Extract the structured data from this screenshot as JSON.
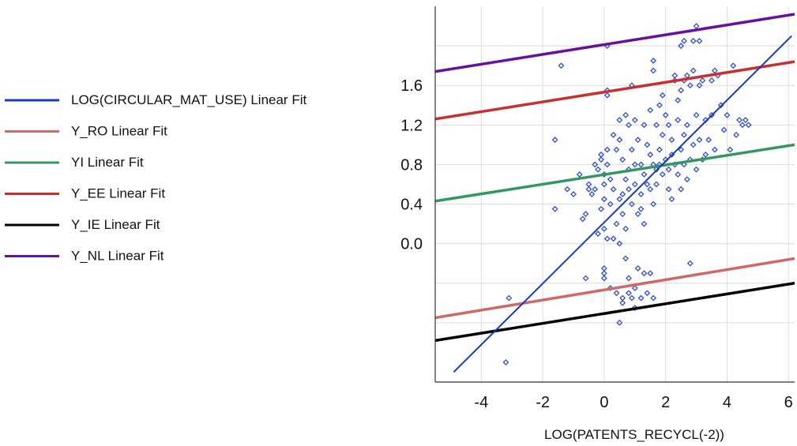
{
  "chart_data": {
    "type": "scatter",
    "title": "",
    "xlabel": "LOG(PATENTS_RECYCL(-2))",
    "ylabel": "",
    "xlim": [
      -5.5,
      6.2
    ],
    "ylim": [
      -1.4,
      2.4
    ],
    "x_ticks": [
      -4,
      -2,
      0,
      2,
      4,
      6
    ],
    "x_tick_labels": [
      "-4",
      "-2",
      "0",
      "2",
      "4",
      "6"
    ],
    "y_ticks": [
      0.0,
      0.4,
      0.8,
      1.2,
      1.6
    ],
    "y_tick_labels": [
      "0.0",
      "0.4",
      "0.8",
      "1.2",
      "1.6"
    ],
    "y_gridlines": [
      -0.8,
      -0.4,
      0.0,
      0.4,
      0.8,
      1.2,
      1.6,
      2.0
    ],
    "grid": true,
    "legend_position": "left",
    "series": [
      {
        "name": "LOG(CIRCULAR_MAT_USE)",
        "kind": "points",
        "marker": "diamond-open",
        "color": "#3050c8",
        "points": [
          [
            -3.2,
            -1.2
          ],
          [
            -3.1,
            -0.55
          ],
          [
            -1.6,
            0.35
          ],
          [
            -1.6,
            1.05
          ],
          [
            -1.4,
            1.8
          ],
          [
            -1.2,
            0.55
          ],
          [
            -1.0,
            0.5
          ],
          [
            -0.8,
            0.7
          ],
          [
            -0.7,
            0.25
          ],
          [
            -0.6,
            0.3
          ],
          [
            -0.5,
            0.6
          ],
          [
            -0.6,
            -0.35
          ],
          [
            -0.4,
            0.5
          ],
          [
            -0.3,
            0.8
          ],
          [
            -0.3,
            0.55
          ],
          [
            -0.2,
            0.75
          ],
          [
            -0.2,
            0.1
          ],
          [
            -0.1,
            0.35
          ],
          [
            -0.1,
            0.85
          ],
          [
            -0.1,
            0.9
          ],
          [
            0.0,
            0.15
          ],
          [
            0.0,
            0.45
          ],
          [
            0.0,
            0.6
          ],
          [
            0.0,
            0.7
          ],
          [
            0.0,
            -0.3
          ],
          [
            0.0,
            -0.25
          ],
          [
            0.0,
            -0.35
          ],
          [
            0.1,
            0.8
          ],
          [
            0.1,
            0.95
          ],
          [
            0.1,
            1.55
          ],
          [
            0.1,
            1.5
          ],
          [
            0.1,
            2.0
          ],
          [
            0.1,
            0.05
          ],
          [
            0.2,
            0.4
          ],
          [
            0.2,
            0.65
          ],
          [
            0.2,
            -0.45
          ],
          [
            0.3,
            0.55
          ],
          [
            0.3,
            1.1
          ],
          [
            0.4,
            0.95
          ],
          [
            0.4,
            0.2
          ],
          [
            0.4,
            -0.5
          ],
          [
            0.5,
            0.45
          ],
          [
            0.5,
            1.05
          ],
          [
            0.5,
            1.25
          ],
          [
            0.5,
            0.0
          ],
          [
            0.5,
            -0.8
          ],
          [
            0.6,
            0.3
          ],
          [
            0.6,
            0.5
          ],
          [
            0.6,
            0.85
          ],
          [
            0.6,
            -0.55
          ],
          [
            0.6,
            -0.6
          ],
          [
            0.7,
            1.3
          ],
          [
            0.7,
            0.65
          ],
          [
            0.7,
            0.15
          ],
          [
            0.7,
            -0.15
          ],
          [
            0.8,
            1.2
          ],
          [
            0.8,
            0.75
          ],
          [
            0.8,
            0.55
          ],
          [
            0.8,
            -0.35
          ],
          [
            0.8,
            -0.5
          ],
          [
            0.9,
            0.4
          ],
          [
            0.9,
            0.95
          ],
          [
            0.9,
            1.6
          ],
          [
            0.9,
            -0.55
          ],
          [
            1.0,
            1.25
          ],
          [
            1.0,
            0.8
          ],
          [
            1.0,
            0.6
          ],
          [
            1.0,
            -0.45
          ],
          [
            1.0,
            -0.65
          ],
          [
            1.1,
            1.05
          ],
          [
            1.1,
            0.3
          ],
          [
            1.1,
            -0.25
          ],
          [
            1.2,
            0.8
          ],
          [
            1.2,
            0.5
          ],
          [
            1.2,
            -0.55
          ],
          [
            1.3,
            1.2
          ],
          [
            1.3,
            0.7
          ],
          [
            1.3,
            0.2
          ],
          [
            1.3,
            -0.3
          ],
          [
            1.4,
            1.0
          ],
          [
            1.4,
            0.6
          ],
          [
            1.4,
            -0.5
          ],
          [
            1.5,
            1.35
          ],
          [
            1.5,
            0.9
          ],
          [
            1.5,
            0.55
          ],
          [
            1.5,
            -0.3
          ],
          [
            1.6,
            1.75
          ],
          [
            1.6,
            1.85
          ],
          [
            1.6,
            0.8
          ],
          [
            1.6,
            0.4
          ],
          [
            1.6,
            -0.55
          ],
          [
            1.7,
            1.2
          ],
          [
            1.7,
            0.75
          ],
          [
            1.7,
            0.6
          ],
          [
            1.8,
            1.4
          ],
          [
            1.8,
            0.95
          ],
          [
            1.8,
            0.8
          ],
          [
            1.9,
            1.5
          ],
          [
            1.9,
            1.1
          ],
          [
            1.9,
            0.7
          ],
          [
            2.0,
            1.3
          ],
          [
            2.0,
            0.85
          ],
          [
            2.1,
            1.2
          ],
          [
            2.1,
            0.75
          ],
          [
            2.1,
            0.55
          ],
          [
            2.2,
            1.05
          ],
          [
            2.2,
            0.9
          ],
          [
            2.2,
            0.45
          ],
          [
            2.3,
            1.65
          ],
          [
            2.3,
            1.7
          ],
          [
            2.3,
            0.8
          ],
          [
            2.4,
            1.45
          ],
          [
            2.4,
            1.25
          ],
          [
            2.4,
            0.7
          ],
          [
            2.5,
            2.0
          ],
          [
            2.5,
            1.55
          ],
          [
            2.5,
            0.95
          ],
          [
            2.5,
            0.55
          ],
          [
            2.6,
            2.05
          ],
          [
            2.6,
            1.65
          ],
          [
            2.6,
            1.1
          ],
          [
            2.6,
            0.8
          ],
          [
            2.7,
            1.7
          ],
          [
            2.7,
            1.2
          ],
          [
            2.7,
            0.65
          ],
          [
            2.8,
            1.6
          ],
          [
            2.8,
            0.85
          ],
          [
            2.8,
            -0.2
          ],
          [
            2.9,
            2.05
          ],
          [
            2.9,
            1.75
          ],
          [
            2.9,
            1.0
          ],
          [
            3.0,
            2.2
          ],
          [
            3.0,
            1.3
          ],
          [
            3.0,
            0.75
          ],
          [
            3.1,
            2.05
          ],
          [
            3.1,
            1.6
          ],
          [
            3.1,
            1.05
          ],
          [
            3.2,
            1.65
          ],
          [
            3.2,
            0.85
          ],
          [
            3.3,
            1.25
          ],
          [
            3.3,
            0.9
          ],
          [
            3.4,
            1.05
          ],
          [
            3.5,
            1.65
          ],
          [
            3.5,
            1.3
          ],
          [
            3.6,
            1.75
          ],
          [
            3.6,
            0.95
          ],
          [
            3.7,
            1.7
          ],
          [
            3.8,
            1.4
          ],
          [
            3.9,
            1.15
          ],
          [
            4.0,
            1.3
          ],
          [
            4.1,
            0.95
          ],
          [
            4.2,
            1.8
          ],
          [
            4.3,
            1.1
          ],
          [
            4.4,
            1.25
          ],
          [
            4.5,
            1.2
          ],
          [
            4.6,
            1.25
          ],
          [
            4.7,
            1.2
          ],
          [
            -0.5,
            0.55
          ],
          [
            0.3,
            0.05
          ],
          [
            1.2,
            0.35
          ]
        ]
      },
      {
        "name": "LOG(CIRCULAR_MAT_USE) Linear Fit",
        "kind": "line",
        "color": "#1838c8",
        "width": 2,
        "x": [
          -4.9,
          6.1
        ],
        "y": [
          -1.3,
          2.1
        ]
      },
      {
        "name": "Y_RO Linear Fit",
        "kind": "line",
        "color": "#d06868",
        "width": 3.5,
        "x": [
          -5.5,
          6.2
        ],
        "y": [
          -0.75,
          -0.15
        ]
      },
      {
        "name": "YI Linear Fit",
        "kind": "line",
        "color": "#309860",
        "width": 3.5,
        "x": [
          -5.5,
          6.2
        ],
        "y": [
          0.43,
          1.0
        ]
      },
      {
        "name": "Y_EE Linear Fit",
        "kind": "line",
        "color": "#c83030",
        "width": 3.5,
        "x": [
          -5.5,
          6.2
        ],
        "y": [
          1.26,
          1.84
        ]
      },
      {
        "name": "Y_IE Linear Fit",
        "kind": "line",
        "color": "#000000",
        "width": 3.5,
        "x": [
          -5.5,
          6.2
        ],
        "y": [
          -0.98,
          -0.4
        ]
      },
      {
        "name": "Y_NL Linear Fit",
        "kind": "line",
        "color": "#6810a0",
        "width": 3.5,
        "x": [
          -5.5,
          6.2
        ],
        "y": [
          1.74,
          2.32
        ]
      }
    ]
  },
  "legend": {
    "items": [
      {
        "label": "LOG(CIRCULAR_MAT_USE) Linear Fit",
        "color": "#1838c8"
      },
      {
        "label": "Y_RO Linear Fit",
        "color": "#d06868"
      },
      {
        "label": "YI Linear Fit",
        "color": "#309860"
      },
      {
        "label": "Y_EE Linear Fit",
        "color": "#c83030"
      },
      {
        "label": "Y_IE Linear Fit",
        "color": "#000000"
      },
      {
        "label": "Y_NL Linear Fit",
        "color": "#6810a0"
      }
    ]
  }
}
